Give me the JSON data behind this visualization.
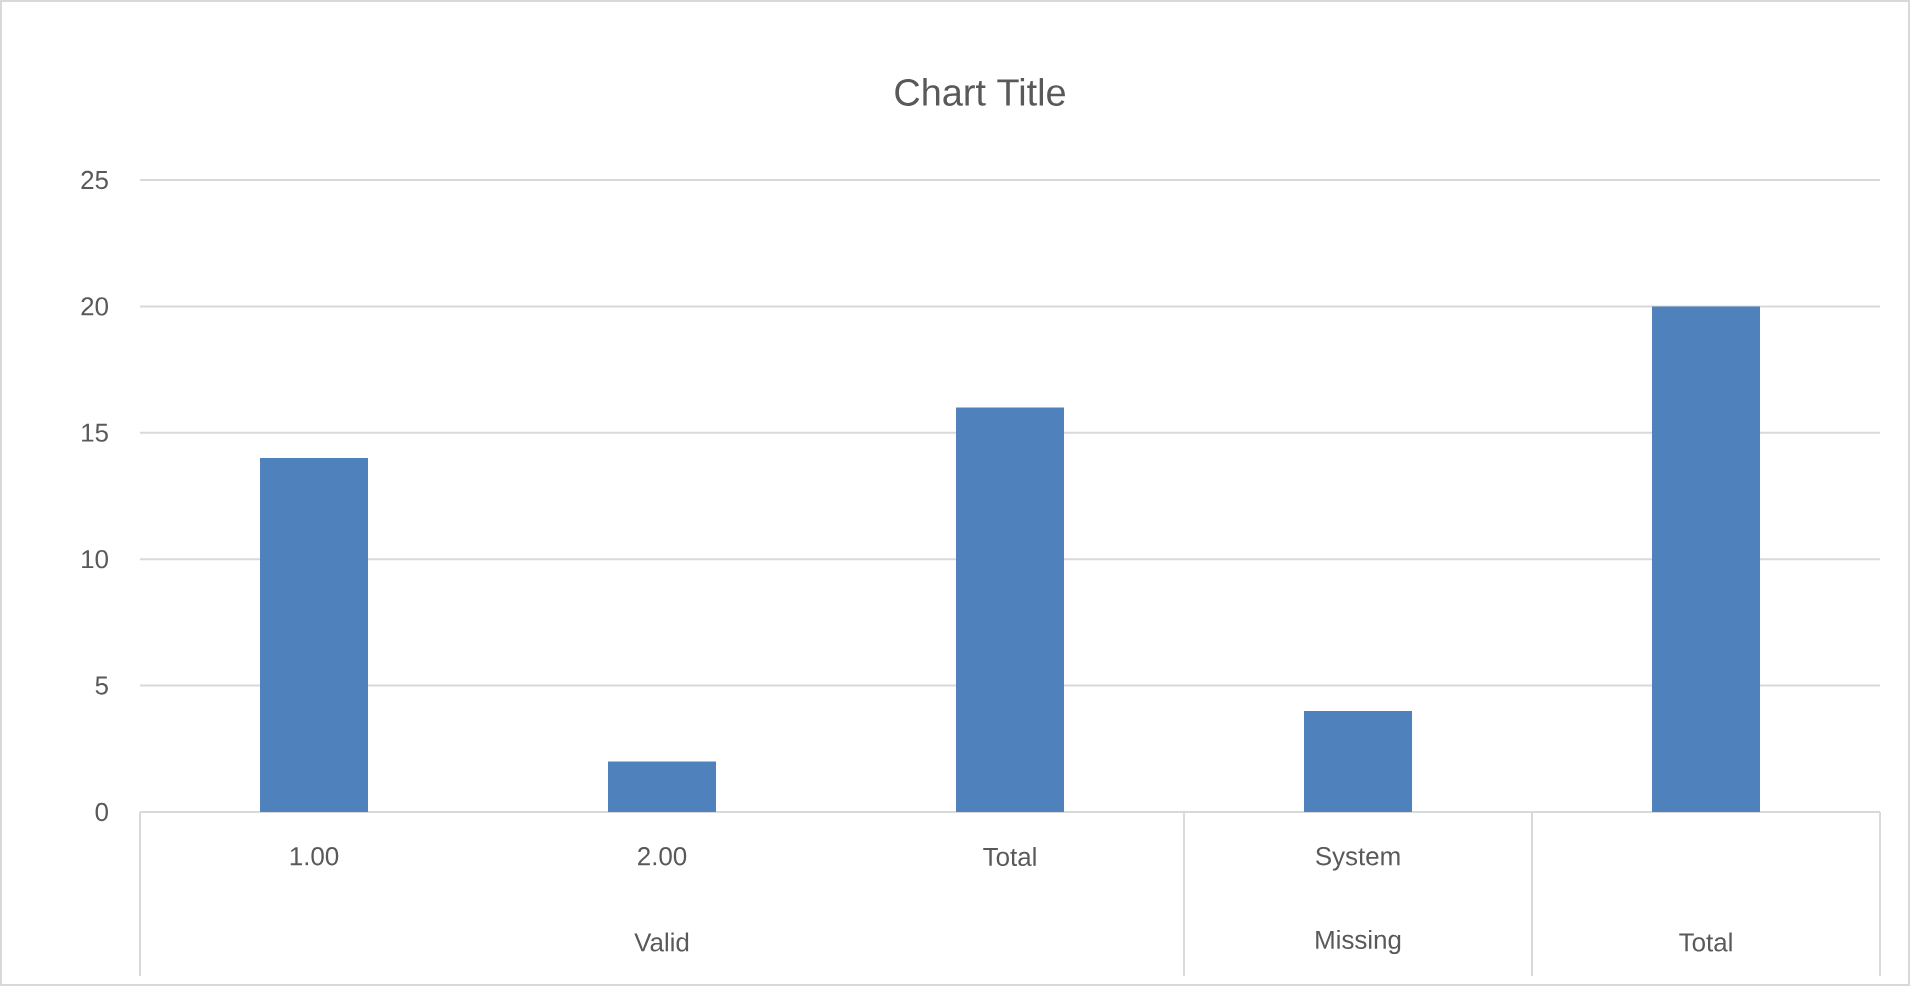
{
  "chart_data": {
    "type": "bar",
    "title": "Chart Title",
    "categories": [
      "1.00",
      "2.00",
      "Total",
      "System",
      null
    ],
    "values": [
      14,
      2,
      16,
      4,
      20
    ],
    "color": "#4f81bd",
    "ylim": [
      0,
      25
    ],
    "yticks": [
      0,
      5,
      10,
      15,
      20,
      25
    ],
    "grid": "y",
    "annotations": [
      "Valid",
      "Missing",
      "Total"
    ]
  }
}
